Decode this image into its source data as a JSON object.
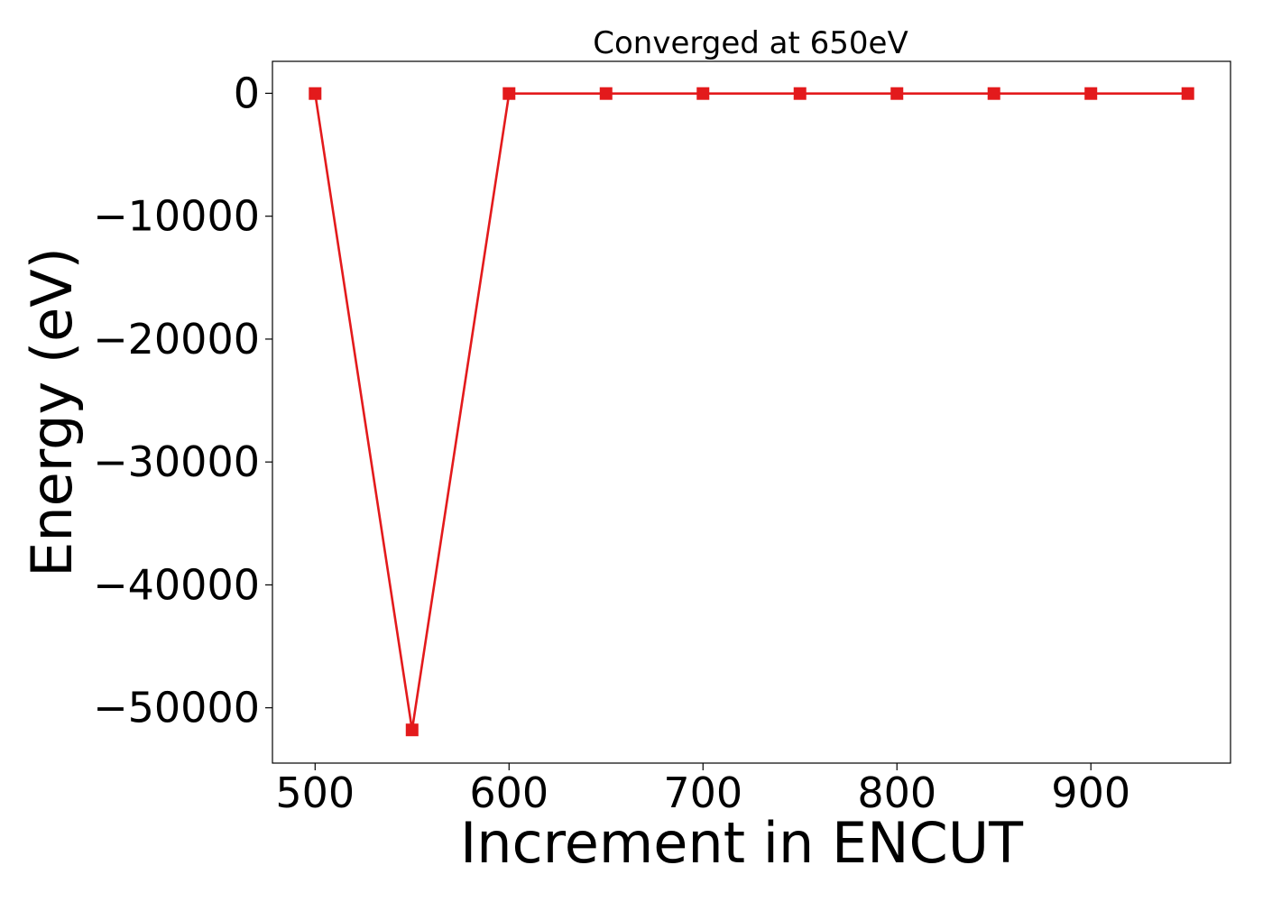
{
  "chart_data": {
    "type": "line",
    "title": "Converged at 650eV",
    "xlabel": "Increment in ENCUT",
    "ylabel": "Energy (eV)",
    "x": [
      500,
      550,
      600,
      650,
      700,
      750,
      800,
      850,
      900,
      950
    ],
    "series": [
      {
        "values": [
          -20,
          -51800,
          -20,
          -20,
          -20,
          -20,
          -20,
          -20,
          -20,
          -20
        ],
        "color": "#e31a1c",
        "marker": "square"
      }
    ],
    "xlim": [
      478,
      972
    ],
    "ylim": [
      -54500,
      2600
    ],
    "xticks": [
      500,
      600,
      700,
      800,
      900
    ],
    "xtick_labels": [
      "500",
      "600",
      "700",
      "800",
      "900"
    ],
    "yticks": [
      0,
      -10000,
      -20000,
      -30000,
      -40000,
      -50000
    ],
    "ytick_labels": [
      "0",
      "−10000",
      "−20000",
      "−30000",
      "−40000",
      "−50000"
    ],
    "grid": false,
    "legend": "none"
  }
}
